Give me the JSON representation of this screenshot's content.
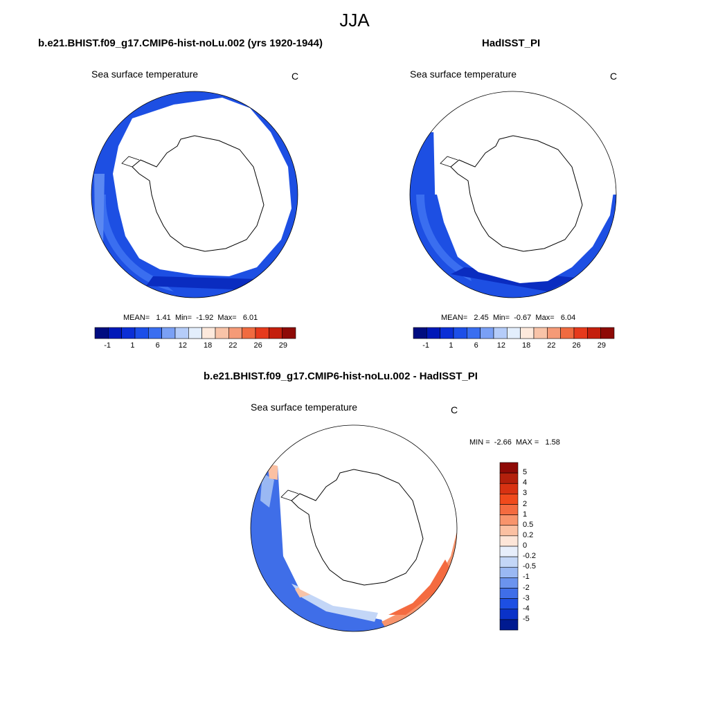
{
  "figure": {
    "title": "JJA"
  },
  "panels": [
    {
      "title": "b.e21.BHIST.f09_g17.CMIP6-hist-noLu.002 (yrs 1920-1944)",
      "variable": "Sea surface temperature",
      "units": "C",
      "stats": {
        "mean_label": "MEAN=",
        "mean": "1.41",
        "min_label": "Min=",
        "min": "-1.92",
        "max_label": "Max=",
        "max": "6.01"
      }
    },
    {
      "title": "HadISST_PI",
      "variable": "Sea surface temperature",
      "units": "C",
      "stats": {
        "mean_label": "MEAN=",
        "mean": "2.45",
        "min_label": "Min=",
        "min": "-0.67",
        "max_label": "Max=",
        "max": "6.04"
      }
    },
    {
      "title": "b.e21.BHIST.f09_g17.CMIP6-hist-noLu.002 - HadISST_PI",
      "variable": "Sea surface temperature",
      "units": "C",
      "stats": {
        "min_label": "MIN =",
        "min": "-2.66",
        "max_label": "MAX =",
        "max": "1.58"
      }
    }
  ],
  "colorbar_abs": {
    "labels": [
      "-1",
      "1",
      "6",
      "12",
      "18",
      "22",
      "26",
      "29"
    ],
    "colors": [
      "#000c80",
      "#0018b8",
      "#0b2fd6",
      "#1d4fe8",
      "#3a6ef0",
      "#7aa0f5",
      "#b5ccf9",
      "#e3eefc",
      "#fde9dc",
      "#f8c3a8",
      "#f59a77",
      "#f06b40",
      "#e63a1c",
      "#c41f0c",
      "#8e0a06"
    ]
  },
  "colorbar_diff": {
    "labels": [
      "5",
      "4",
      "3",
      "2",
      "1",
      "0.5",
      "0.2",
      "0",
      "-0.2",
      "-0.5",
      "-1",
      "-2",
      "-3",
      "-4",
      "-5"
    ],
    "colors": [
      "#8e0a06",
      "#b3200c",
      "#d83212",
      "#f04a1c",
      "#f46b40",
      "#f8946c",
      "#fbc0a2",
      "#fde5d8",
      "#e7eefb",
      "#c3d6f7",
      "#9ab8f3",
      "#6b93ee",
      "#3f6ee8",
      "#1d4fe3",
      "#0a32c8",
      "#001a90"
    ]
  },
  "colors": {
    "ocean_deep_blue": "#1d4fe3",
    "ocean_blue": "#3a6ef0",
    "ocean_dark": "#0a2cc0",
    "ice_white": "#ffffff",
    "diff_warm": "#f8946c",
    "diff_cold": "#3f6ee8"
  }
}
